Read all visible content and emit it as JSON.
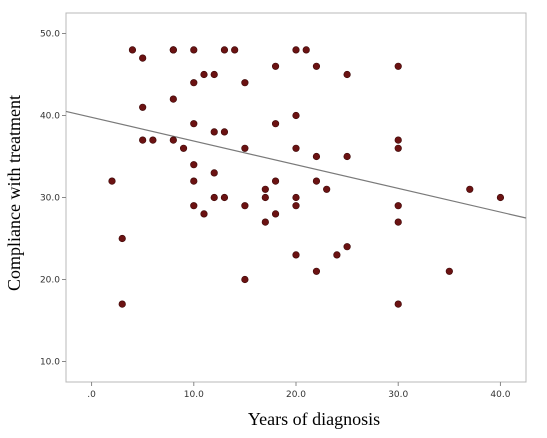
{
  "chart_data": {
    "type": "scatter",
    "title": "",
    "xlabel": "Years of diagnosis",
    "ylabel": "Compliance with treatment",
    "xlim": [
      -2.5,
      42.5
    ],
    "ylim": [
      7.5,
      52.5
    ],
    "x_ticks": [
      0,
      10,
      20,
      30,
      40
    ],
    "x_tick_labels": [
      ".0",
      "10.0",
      "20.0",
      "30.0",
      "40.0"
    ],
    "y_ticks": [
      10,
      20,
      30,
      40,
      50
    ],
    "y_tick_labels": [
      "10.0",
      "20.0",
      "30.0",
      "40.0",
      "50.0"
    ],
    "grid": false,
    "legend": "none",
    "point_color": "#6b1212",
    "line_color": "#7a7a7a",
    "background_color": "#ffffff",
    "frame_color": "#b8b8b8",
    "fit_line": {
      "x": [
        -2.5,
        42.5
      ],
      "y": [
        40.5,
        27.5
      ]
    },
    "points": [
      [
        4,
        48
      ],
      [
        5,
        47
      ],
      [
        8,
        48
      ],
      [
        8,
        48
      ],
      [
        10,
        48
      ],
      [
        13,
        48
      ],
      [
        14,
        48
      ],
      [
        20,
        48
      ],
      [
        21,
        48
      ],
      [
        18,
        46
      ],
      [
        22,
        46
      ],
      [
        30,
        46
      ],
      [
        11,
        45
      ],
      [
        12,
        45
      ],
      [
        25,
        45
      ],
      [
        10,
        44
      ],
      [
        15,
        44
      ],
      [
        8,
        42
      ],
      [
        5,
        41
      ],
      [
        20,
        40
      ],
      [
        10,
        39
      ],
      [
        18,
        39
      ],
      [
        12,
        38
      ],
      [
        13,
        38
      ],
      [
        5,
        37
      ],
      [
        6,
        37
      ],
      [
        8,
        37
      ],
      [
        30,
        37
      ],
      [
        9,
        36
      ],
      [
        15,
        36
      ],
      [
        20,
        36
      ],
      [
        30,
        36
      ],
      [
        22,
        35
      ],
      [
        25,
        35
      ],
      [
        10,
        34
      ],
      [
        12,
        33
      ],
      [
        2,
        32
      ],
      [
        10,
        32
      ],
      [
        18,
        32
      ],
      [
        22,
        32
      ],
      [
        17,
        31
      ],
      [
        23,
        31
      ],
      [
        37,
        31
      ],
      [
        12,
        30
      ],
      [
        13,
        30
      ],
      [
        17,
        30
      ],
      [
        20,
        30
      ],
      [
        40,
        30
      ],
      [
        10,
        29
      ],
      [
        15,
        29
      ],
      [
        20,
        29
      ],
      [
        30,
        29
      ],
      [
        11,
        28
      ],
      [
        18,
        28
      ],
      [
        17,
        27
      ],
      [
        30,
        27
      ],
      [
        3,
        25
      ],
      [
        25,
        24
      ],
      [
        20,
        23
      ],
      [
        24,
        23
      ],
      [
        22,
        21
      ],
      [
        35,
        21
      ],
      [
        15,
        20
      ],
      [
        3,
        17
      ],
      [
        30,
        17
      ]
    ]
  }
}
